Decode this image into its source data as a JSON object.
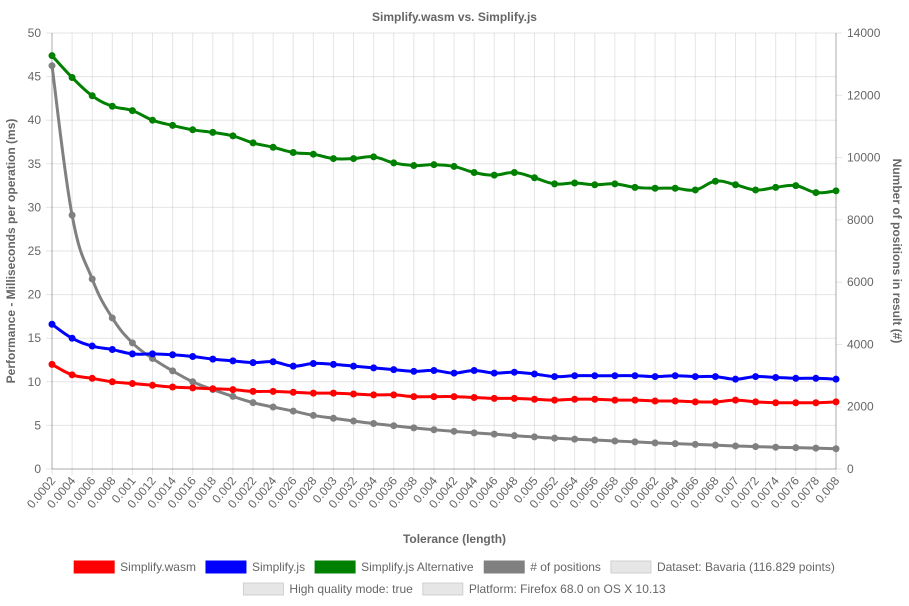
{
  "chart_data": {
    "type": "line",
    "title": "Simplify.wasm vs. Simplify.js",
    "xlabel": "Tolerance (length)",
    "ylabel_left": "Performance - Milliseconds per operation (ms)",
    "ylabel_right": "Number of positions in result (#)",
    "ylim_left": [
      0,
      50
    ],
    "ylim_right": [
      0,
      14000
    ],
    "yticks_left": [
      "0",
      "5",
      "10",
      "15",
      "20",
      "25",
      "30",
      "35",
      "40",
      "45",
      "50"
    ],
    "yticks_right": [
      "0",
      "2000",
      "4000",
      "6000",
      "8000",
      "10000",
      "12000",
      "14000"
    ],
    "grid": true,
    "legend_position": "bottom",
    "categories": [
      "0.0002",
      "0.0004",
      "0.0006",
      "0.0008",
      "0.001",
      "0.0012",
      "0.0014",
      "0.0016",
      "0.0018",
      "0.002",
      "0.0022",
      "0.0024",
      "0.0026",
      "0.0028",
      "0.003",
      "0.0032",
      "0.0034",
      "0.0036",
      "0.0038",
      "0.004",
      "0.0042",
      "0.0044",
      "0.0046",
      "0.0048",
      "0.005",
      "0.0052",
      "0.0054",
      "0.0056",
      "0.0058",
      "0.006",
      "0.0062",
      "0.0064",
      "0.0066",
      "0.0068",
      "0.007",
      "0.0072",
      "0.0074",
      "0.0076",
      "0.0078",
      "0.008"
    ],
    "series": [
      {
        "name": "Simplify.wasm",
        "color": "#ff0000",
        "axis": "left",
        "values": [
          12.0,
          10.8,
          10.4,
          10.0,
          9.8,
          9.6,
          9.4,
          9.3,
          9.2,
          9.1,
          8.9,
          8.9,
          8.8,
          8.7,
          8.7,
          8.6,
          8.5,
          8.5,
          8.3,
          8.3,
          8.3,
          8.2,
          8.1,
          8.1,
          8.0,
          7.9,
          8.0,
          8.0,
          7.9,
          7.9,
          7.8,
          7.8,
          7.7,
          7.7,
          7.9,
          7.7,
          7.6,
          7.6,
          7.6,
          7.7
        ]
      },
      {
        "name": "Simplify.js",
        "color": "#0000ff",
        "axis": "left",
        "values": [
          16.6,
          15.0,
          14.1,
          13.7,
          13.2,
          13.2,
          13.1,
          12.9,
          12.6,
          12.4,
          12.2,
          12.3,
          11.8,
          12.1,
          12.0,
          11.8,
          11.6,
          11.4,
          11.2,
          11.3,
          11.0,
          11.3,
          11.0,
          11.1,
          10.9,
          10.6,
          10.7,
          10.7,
          10.7,
          10.7,
          10.6,
          10.7,
          10.6,
          10.6,
          10.3,
          10.6,
          10.5,
          10.4,
          10.4,
          10.3
        ]
      },
      {
        "name": "Simplify.js Alternative",
        "color": "#008000",
        "axis": "left",
        "values": [
          47.4,
          44.9,
          42.8,
          41.6,
          41.1,
          40.0,
          39.4,
          38.9,
          38.6,
          38.2,
          37.4,
          36.9,
          36.3,
          36.1,
          35.6,
          35.6,
          35.8,
          35.1,
          34.8,
          34.9,
          34.7,
          34.0,
          33.7,
          34.0,
          33.4,
          32.7,
          32.8,
          32.6,
          32.7,
          32.3,
          32.2,
          32.2,
          32.0,
          33.0,
          32.6,
          32.0,
          32.3,
          32.5,
          31.7,
          31.9
        ]
      },
      {
        "name": "# of positions",
        "color": "#808080",
        "axis": "right",
        "values": [
          12950,
          8150,
          6100,
          4850,
          4050,
          3550,
          3150,
          2800,
          2550,
          2330,
          2130,
          1990,
          1860,
          1720,
          1630,
          1540,
          1460,
          1390,
          1320,
          1260,
          1210,
          1160,
          1120,
          1070,
          1030,
          990,
          960,
          930,
          900,
          870,
          840,
          815,
          790,
          765,
          740,
          720,
          700,
          685,
          670,
          650
        ]
      }
    ],
    "extra_legend": [
      "Dataset: Bavaria (116.829 points)",
      "High quality mode: true",
      "Platform: Firefox 68.0 on OS X 10.13"
    ]
  }
}
